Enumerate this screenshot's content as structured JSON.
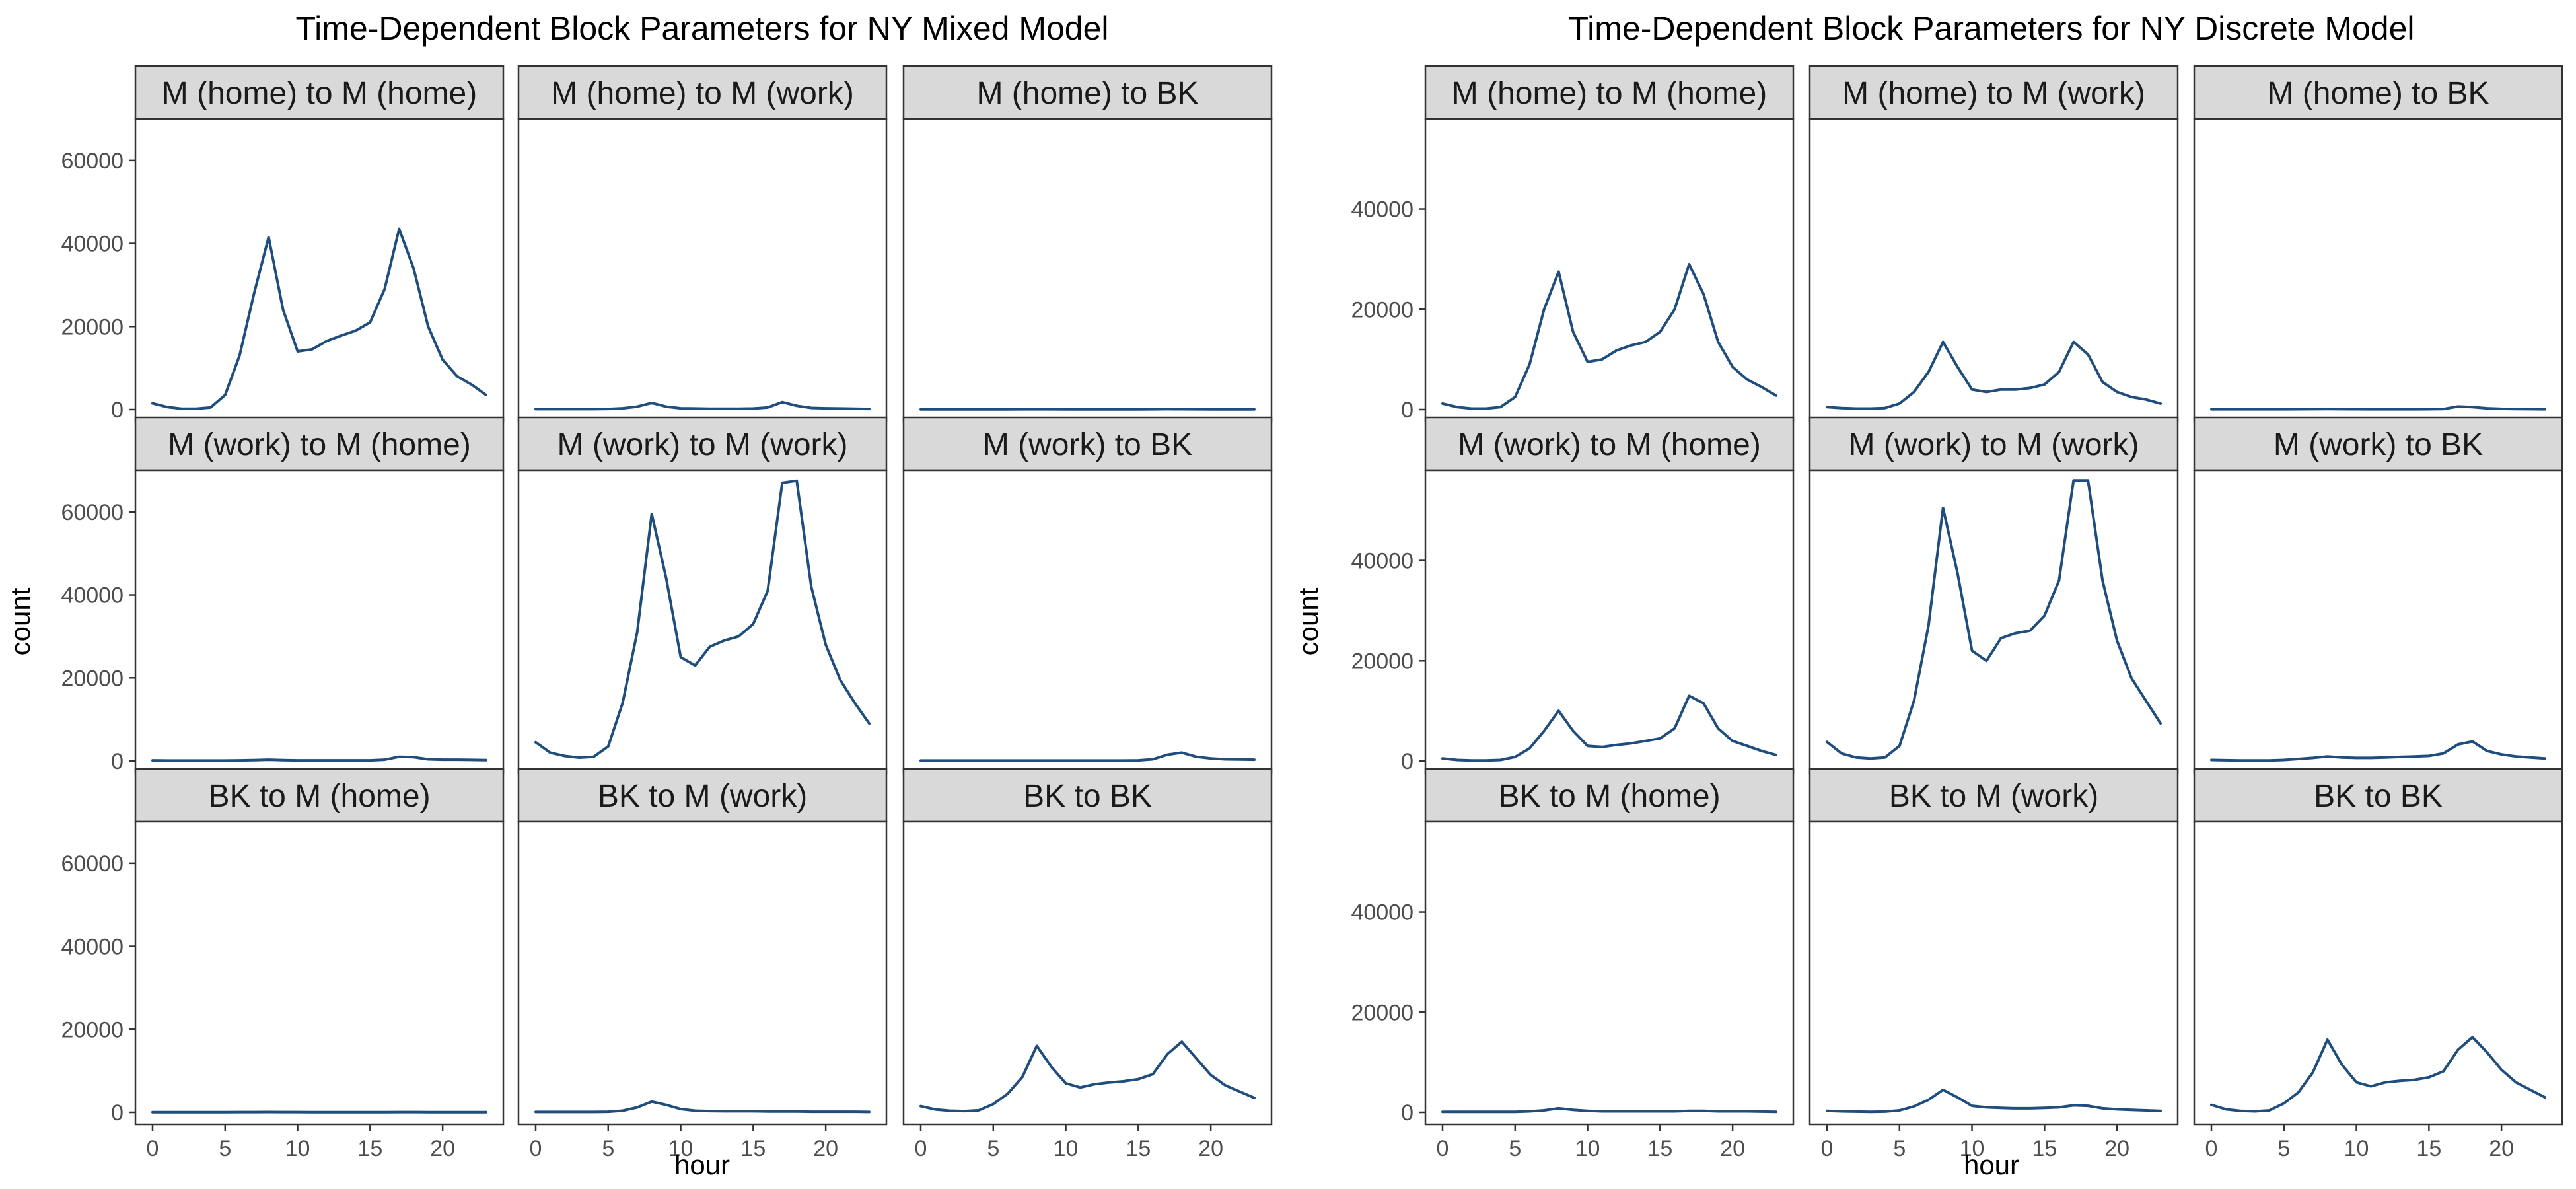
{
  "chart_data": [
    {
      "type": "line",
      "title": "Time-Dependent Block Parameters for NY Mixed Model",
      "xlabel": "hour",
      "ylabel": "count",
      "xlim": [
        0,
        23
      ],
      "ylim": [
        0,
        70000
      ],
      "xticks": [
        0,
        5,
        10,
        15,
        20
      ],
      "yticks": [
        0,
        20000,
        40000,
        60000
      ],
      "grid": false,
      "line_color": "#1f4e7e",
      "x": [
        0,
        1,
        2,
        3,
        4,
        5,
        6,
        7,
        8,
        9,
        10,
        11,
        12,
        13,
        14,
        15,
        16,
        17,
        18,
        19,
        20,
        21,
        22,
        23
      ],
      "panels": [
        {
          "label": "M (home) to M (home)",
          "values": [
            1500,
            600,
            200,
            200,
            500,
            3500,
            13000,
            28000,
            41500,
            24000,
            14000,
            14500,
            16500,
            17800,
            19000,
            21000,
            29000,
            43500,
            34000,
            20000,
            12000,
            8000,
            6000,
            3500
          ]
        },
        {
          "label": "M (home) to M (work)",
          "values": [
            100,
            100,
            100,
            100,
            100,
            150,
            300,
            700,
            1600,
            700,
            300,
            250,
            200,
            200,
            200,
            250,
            500,
            1800,
            900,
            400,
            300,
            250,
            200,
            150
          ]
        },
        {
          "label": "M (home) to BK",
          "values": [
            50,
            50,
            50,
            50,
            50,
            50,
            50,
            60,
            70,
            60,
            50,
            50,
            50,
            50,
            50,
            50,
            60,
            100,
            80,
            60,
            50,
            50,
            50,
            50
          ]
        },
        {
          "label": "M (work) to M (home)",
          "values": [
            150,
            100,
            100,
            100,
            100,
            100,
            150,
            200,
            300,
            200,
            150,
            150,
            150,
            150,
            150,
            150,
            300,
            1000,
            900,
            400,
            300,
            300,
            250,
            200
          ]
        },
        {
          "label": "M (work) to M (work)",
          "values": [
            4500,
            2000,
            1200,
            800,
            1000,
            3500,
            14000,
            31000,
            59500,
            44000,
            25000,
            23000,
            27500,
            29000,
            30000,
            33000,
            41000,
            67000,
            67500,
            42000,
            28000,
            19500,
            14000,
            9000
          ]
        },
        {
          "label": "M (work) to BK",
          "values": [
            100,
            100,
            100,
            100,
            100,
            100,
            100,
            100,
            100,
            100,
            100,
            100,
            100,
            100,
            100,
            150,
            400,
            1500,
            2000,
            1000,
            600,
            400,
            350,
            300
          ]
        },
        {
          "label": "BK to M (home)",
          "values": [
            50,
            50,
            50,
            50,
            50,
            50,
            60,
            70,
            80,
            70,
            60,
            50,
            50,
            50,
            50,
            50,
            50,
            60,
            60,
            50,
            50,
            50,
            50,
            50
          ]
        },
        {
          "label": "BK to M (work)",
          "values": [
            100,
            100,
            100,
            100,
            100,
            150,
            400,
            1200,
            2600,
            1800,
            800,
            400,
            300,
            250,
            250,
            250,
            200,
            200,
            200,
            150,
            150,
            150,
            150,
            100
          ]
        },
        {
          "label": "BK to BK",
          "values": [
            1500,
            700,
            400,
            300,
            500,
            2000,
            4500,
            8500,
            16000,
            11000,
            7000,
            6000,
            6800,
            7200,
            7500,
            8000,
            9200,
            14000,
            17000,
            13000,
            9000,
            6500,
            5000,
            3500
          ]
        }
      ]
    },
    {
      "type": "line",
      "title": "Time-Dependent Block Parameters for NY Discrete Model",
      "xlabel": "hour",
      "ylabel": "count",
      "xlim": [
        0,
        23
      ],
      "ylim": [
        0,
        58000
      ],
      "xticks": [
        0,
        5,
        10,
        15,
        20
      ],
      "yticks": [
        0,
        20000,
        40000
      ],
      "grid": false,
      "line_color": "#1f4e7e",
      "x": [
        0,
        1,
        2,
        3,
        4,
        5,
        6,
        7,
        8,
        9,
        10,
        11,
        12,
        13,
        14,
        15,
        16,
        17,
        18,
        19,
        20,
        21,
        22,
        23
      ],
      "panels": [
        {
          "label": "M (home) to M (home)",
          "values": [
            1200,
            500,
            200,
            200,
            500,
            2500,
            9000,
            20000,
            27500,
            15500,
            9500,
            10000,
            11800,
            12800,
            13500,
            15500,
            20000,
            29000,
            23000,
            13500,
            8500,
            6000,
            4500,
            2800
          ]
        },
        {
          "label": "M (home) to M (work)",
          "values": [
            500,
            300,
            200,
            200,
            300,
            1200,
            3500,
            7500,
            13500,
            8500,
            4000,
            3500,
            4000,
            4000,
            4300,
            5000,
            7500,
            13500,
            11000,
            5500,
            3500,
            2500,
            2000,
            1200
          ]
        },
        {
          "label": "M (home) to BK",
          "values": [
            50,
            50,
            50,
            50,
            50,
            50,
            60,
            80,
            100,
            80,
            60,
            50,
            50,
            50,
            50,
            60,
            100,
            600,
            500,
            250,
            150,
            100,
            80,
            50
          ]
        },
        {
          "label": "M (work) to M (home)",
          "values": [
            500,
            200,
            100,
            100,
            200,
            800,
            2500,
            6000,
            10000,
            6000,
            3000,
            2800,
            3200,
            3500,
            4000,
            4500,
            6500,
            13000,
            11500,
            6500,
            4000,
            3000,
            2000,
            1200
          ]
        },
        {
          "label": "M (work) to M (work)",
          "values": [
            3800,
            1500,
            700,
            500,
            700,
            3000,
            12000,
            27000,
            50500,
            37500,
            22000,
            20000,
            24500,
            25500,
            26000,
            29000,
            36000,
            56000,
            56000,
            36000,
            24000,
            16500,
            12000,
            7500
          ]
        },
        {
          "label": "M (work) to BK",
          "values": [
            200,
            150,
            100,
            100,
            100,
            200,
            400,
            600,
            900,
            700,
            600,
            600,
            700,
            800,
            900,
            1000,
            1500,
            3300,
            3900,
            2000,
            1300,
            900,
            700,
            500
          ]
        },
        {
          "label": "BK to M (home)",
          "values": [
            100,
            100,
            100,
            100,
            100,
            100,
            200,
            400,
            800,
            500,
            300,
            200,
            200,
            200,
            200,
            200,
            200,
            300,
            300,
            200,
            200,
            200,
            150,
            100
          ]
        },
        {
          "label": "BK to M (work)",
          "values": [
            300,
            200,
            150,
            100,
            150,
            400,
            1200,
            2500,
            4500,
            3000,
            1300,
            1000,
            900,
            800,
            800,
            900,
            1000,
            1400,
            1300,
            800,
            600,
            500,
            400,
            300
          ]
        },
        {
          "label": "BK to BK",
          "values": [
            1500,
            600,
            300,
            200,
            400,
            1800,
            4000,
            8000,
            14500,
            9500,
            6000,
            5200,
            6000,
            6300,
            6500,
            7000,
            8200,
            12500,
            15000,
            12000,
            8500,
            6000,
            4500,
            3000
          ]
        }
      ]
    }
  ]
}
